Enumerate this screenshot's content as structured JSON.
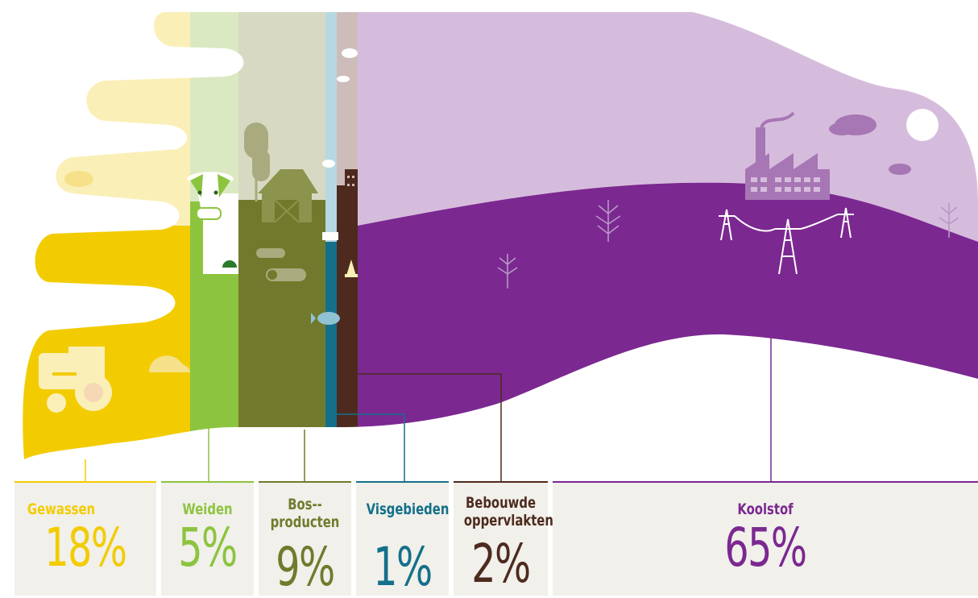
{
  "categories": [
    {
      "key": "gewassen",
      "name": "Gewassen",
      "pct": "18%",
      "color": "#f2cc00"
    },
    {
      "key": "weiden",
      "name": "Weiden",
      "pct": "5%",
      "color": "#8dc43f"
    },
    {
      "key": "bos",
      "name": "Bos--\nproducten",
      "pct": "9%",
      "color": "#717a2c"
    },
    {
      "key": "visgebieden",
      "name": "Visgebieden",
      "pct": "1%",
      "color": "#14708a"
    },
    {
      "key": "bebouwd",
      "name": "Bebouwde\noppervlakten",
      "pct": "2%",
      "color": "#4e2a1e"
    },
    {
      "key": "koolstof",
      "name": "Koolstof",
      "pct": "65%",
      "color": "#7b2891"
    }
  ],
  "icons": [
    "tractor-icon",
    "cow-icon",
    "barn-icon",
    "tree-icon",
    "log-icon",
    "fish-icon",
    "city-icon",
    "factory-icon",
    "pylon-icon",
    "cloud-icon",
    "sun-icon"
  ]
}
